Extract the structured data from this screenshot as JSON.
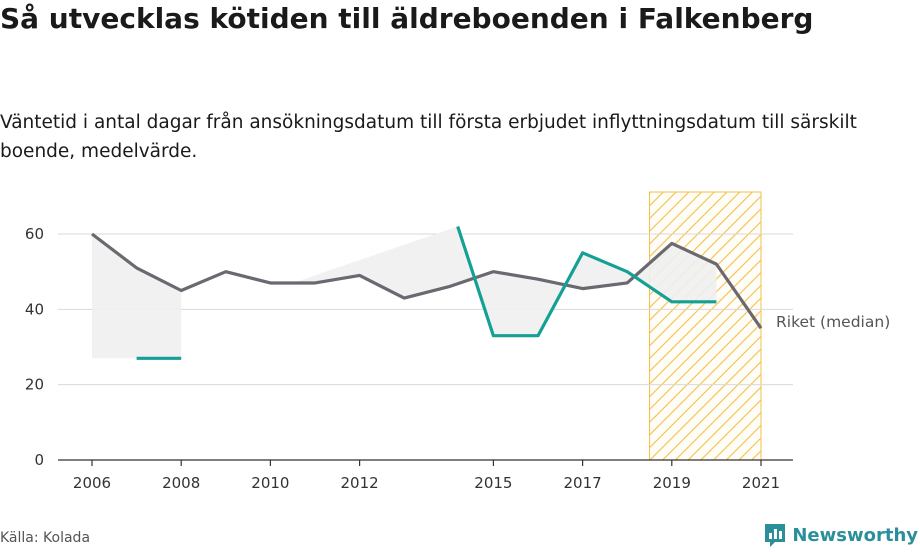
{
  "title": "Så utvecklas kötiden till äldreboenden i Falkenberg",
  "subtitle": "Väntetid i antal dagar från ansökningsdatum till första erbjudet inflyttningsdatum till särskilt boende, medelvärde.",
  "source": "Källa: Kolada",
  "brand": {
    "name": "Newsworthy",
    "icon": "newsworthy-logo-icon",
    "color": "#2a8f9a"
  },
  "chart_data": {
    "type": "line",
    "xlim": [
      2006,
      2021
    ],
    "ylim": [
      0,
      70
    ],
    "y_ticks": [
      0,
      20,
      40,
      60
    ],
    "x_ticks": [
      2006,
      2008,
      2010,
      2012,
      2015,
      2017,
      2019,
      2021
    ],
    "grid": true,
    "highlight_band": {
      "x": [
        2018.5,
        2021
      ],
      "pattern": "diagonal-hatch",
      "color": "#f5c04a"
    },
    "series": [
      {
        "name": "",
        "color": "#14a095",
        "points": [
          [
            2007,
            27
          ],
          [
            2008,
            27
          ],
          [
            null,
            null
          ],
          [
            2014.2,
            62
          ],
          [
            2015,
            33
          ],
          [
            2016,
            33
          ],
          [
            2017,
            55
          ],
          [
            2018,
            50
          ],
          [
            2019,
            42
          ],
          [
            2020,
            42
          ]
        ]
      },
      {
        "name": "Riket (median)",
        "color": "#6b6870",
        "points": [
          [
            2006,
            60
          ],
          [
            2007,
            51
          ],
          [
            2008,
            45
          ],
          [
            2009,
            50
          ],
          [
            2010,
            47
          ],
          [
            2011,
            47
          ],
          [
            2012,
            49
          ],
          [
            2013,
            43
          ],
          [
            2014,
            46
          ],
          [
            2015,
            50
          ],
          [
            2016,
            48
          ],
          [
            2017,
            45.5
          ],
          [
            2018,
            47
          ],
          [
            2019,
            57.5
          ],
          [
            2020,
            52
          ],
          [
            2021,
            35
          ]
        ]
      }
    ]
  }
}
